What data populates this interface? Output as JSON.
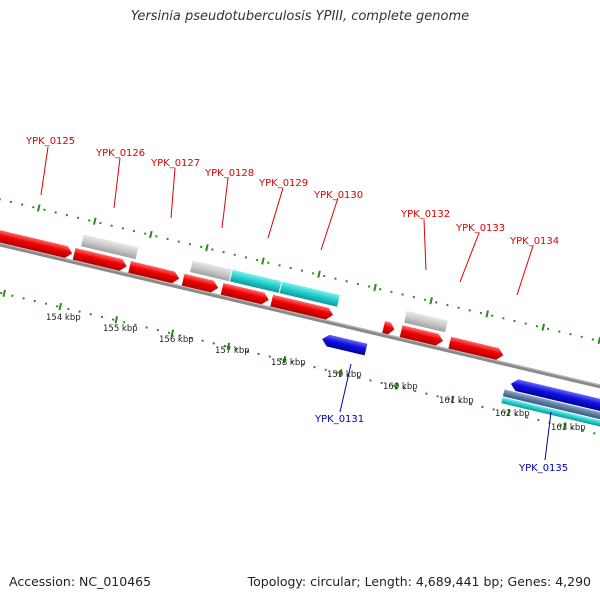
{
  "title": "Yersinia pseudotuberculosis YPIII, complete genome",
  "footer": {
    "accession": "Accession: NC_010465",
    "info": "Topology: circular; Length: 4,689,441 bp; Genes: 4,290"
  },
  "colors": {
    "forward_gene": "#ee0000",
    "reverse_gene": "#1010dd",
    "pseudo_gene": "#c8c8c8",
    "rna_gene": "#22cccc",
    "ruler": "#2a8a1a",
    "backbone": "#888888",
    "label_forward": "#dd0000",
    "label_reverse": "#0000aa"
  },
  "tick_labels": [
    "154 kbp",
    "155 kbp",
    "156 kbp",
    "157 kbp",
    "158 kbp",
    "159 kbp",
    "160 kbp",
    "161 kbp",
    "162 kbp",
    "163 kbp"
  ],
  "gene_labels_forward": [
    "YPK_0125",
    "YPK_0126",
    "YPK_0127",
    "YPK_0128",
    "YPK_0129",
    "YPK_0130",
    "YPK_0132",
    "YPK_0133",
    "YPK_0134"
  ],
  "gene_labels_reverse": [
    "YPK_0131",
    "YPK_0135"
  ]
}
